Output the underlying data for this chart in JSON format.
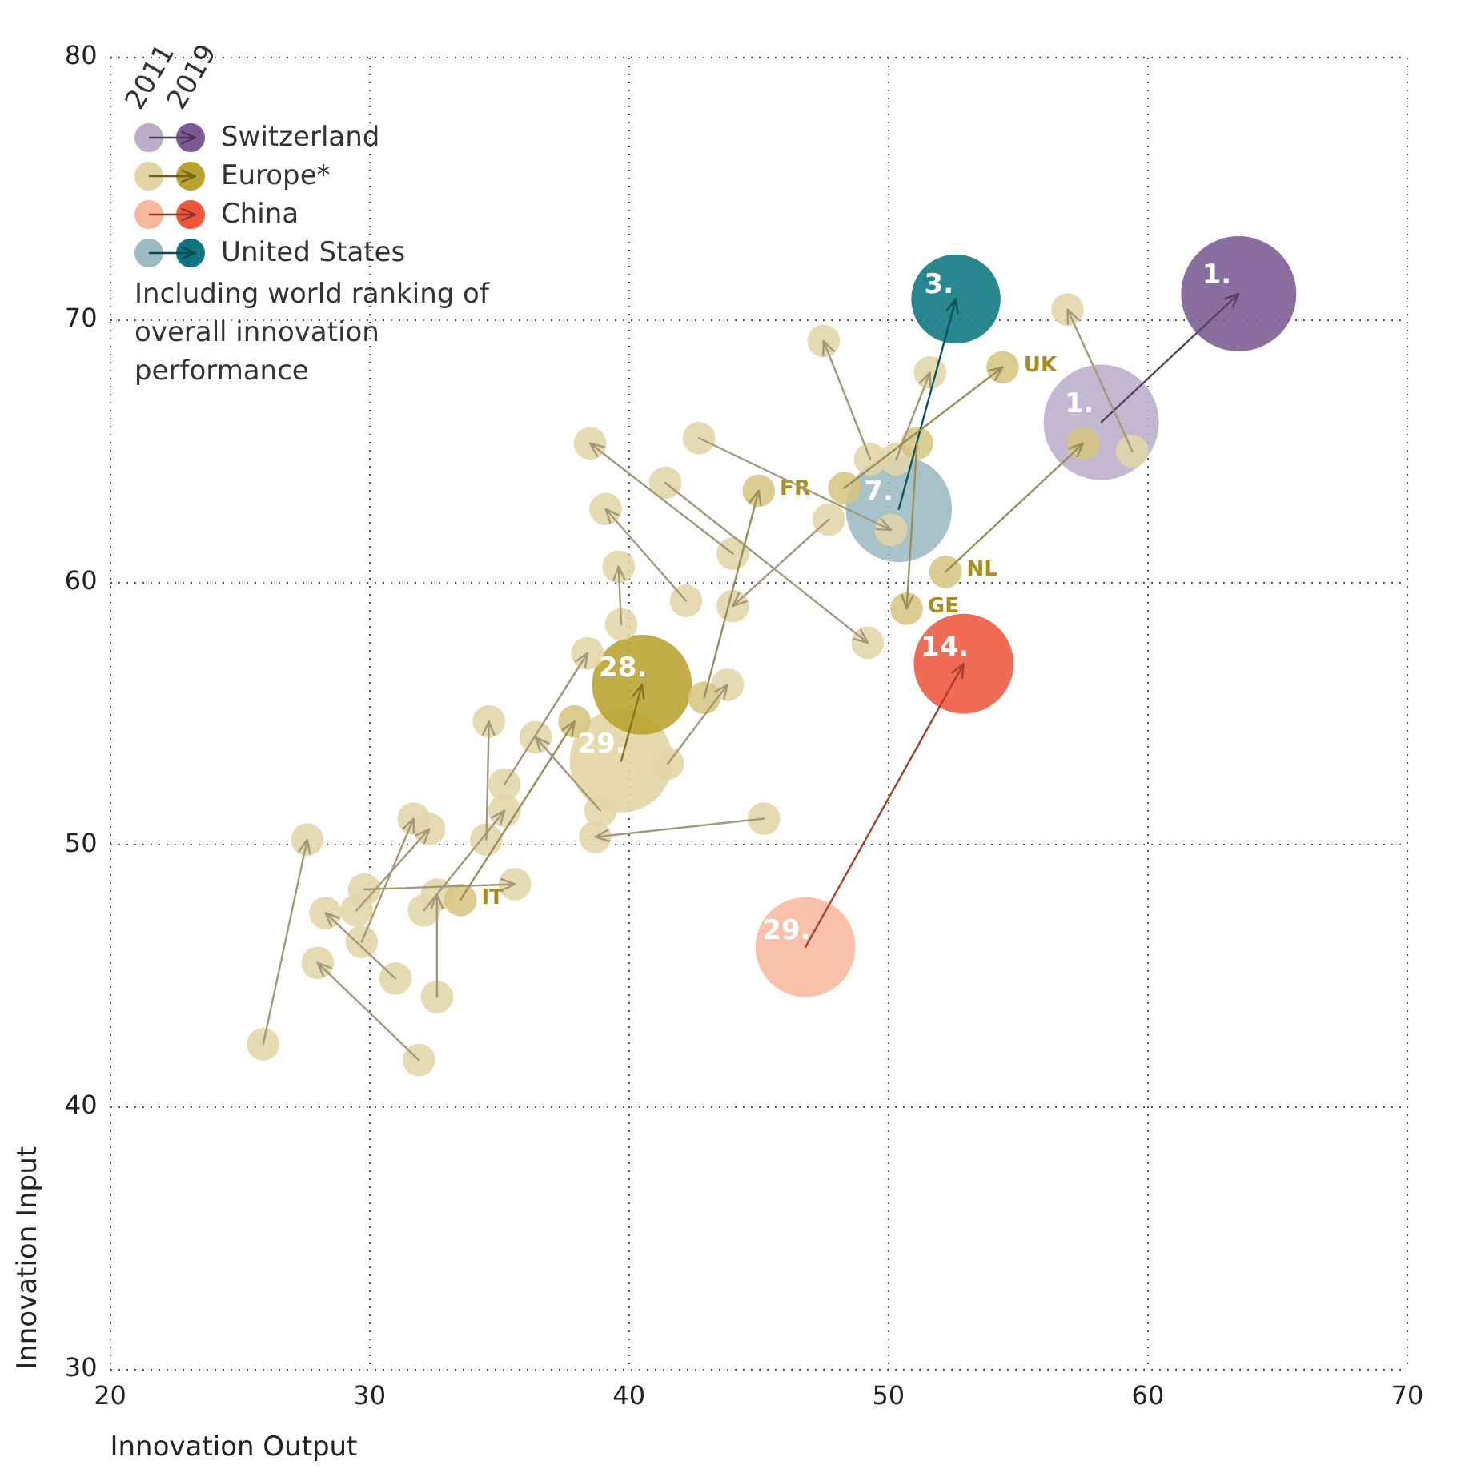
{
  "chart_data": {
    "type": "bubble",
    "xlabel": "Innovation Output",
    "ylabel": "Innovation Input",
    "xlim": [
      20,
      70
    ],
    "ylim": [
      30,
      80
    ],
    "xticks": [
      20,
      30,
      40,
      50,
      60,
      70
    ],
    "yticks": [
      30,
      40,
      50,
      60,
      70,
      80
    ],
    "grid": true,
    "legend": "top left",
    "annotations": [
      "2011",
      "2019",
      "Including world ranking of overall innovation performance",
      {
        "text": "1.",
        "x": 58.2,
        "y": 66.1
      },
      {
        "text": "1.",
        "x": 63.5,
        "y": 71.0
      },
      {
        "text": "29.",
        "x": 39.7,
        "y": 53.2
      },
      {
        "text": "28.",
        "x": 40.5,
        "y": 56.1
      },
      {
        "text": "29.",
        "x": 46.8,
        "y": 46.1
      },
      {
        "text": "14.",
        "x": 52.9,
        "y": 56.9
      },
      {
        "text": "7.",
        "x": 50.4,
        "y": 62.8
      },
      {
        "text": "3.",
        "x": 52.6,
        "y": 70.8
      },
      {
        "text": "IT",
        "x": 33.5,
        "y": 47.9
      },
      {
        "text": "FR",
        "x": 45.0,
        "y": 63.5
      },
      {
        "text": "UK",
        "x": 54.4,
        "y": 68.2
      },
      {
        "text": "NL",
        "x": 52.2,
        "y": 60.4
      },
      {
        "text": "GE",
        "x": 50.7,
        "y": 59.0
      }
    ],
    "series": [
      {
        "name": "Switzerland",
        "colors": [
          "#bcaec9",
          "#7a5a92"
        ],
        "x": [
          58.2,
          63.5
        ],
        "values": [
          66.1,
          71.0
        ],
        "sizes": [
          1,
          1
        ]
      },
      {
        "name": "Europe*",
        "colors": [
          "#e2d4a3",
          "#b9a22d"
        ],
        "x": [
          39.7,
          40.5
        ],
        "values": [
          53.2,
          56.1
        ],
        "sizes": [
          0.8,
          0.75
        ]
      },
      {
        "name": "China",
        "colors": [
          "#f8b89e",
          "#ef563c"
        ],
        "x": [
          46.8,
          52.9
        ],
        "values": [
          46.1,
          56.9
        ],
        "sizes": [
          0.75,
          0.75
        ]
      },
      {
        "name": "United States",
        "colors": [
          "#9bbac2",
          "#0b7681"
        ],
        "x": [
          50.4,
          52.6
        ],
        "values": [
          62.8,
          70.8
        ],
        "sizes": [
          0.85,
          0.6
        ]
      },
      {
        "colors": [
          "#e2d5a8",
          "#e2d5a8"
        ],
        "x": [
          25.9,
          27.6
        ],
        "values": [
          42.4,
          50.2
        ],
        "sizes": [
          0.08,
          0.08
        ]
      },
      {
        "colors": [
          "#e2d5a8",
          "#e2d5a8"
        ],
        "x": [
          31.9,
          28.0
        ],
        "values": [
          41.8,
          45.5
        ],
        "sizes": [
          0.08,
          0.08
        ]
      },
      {
        "colors": [
          "#e2d5a8",
          "#e2d5a8"
        ],
        "x": [
          32.6,
          32.6
        ],
        "values": [
          44.2,
          48.1
        ],
        "sizes": [
          0.08,
          0.08
        ]
      },
      {
        "colors": [
          "#e2d5a8",
          "#e2d5a8"
        ],
        "x": [
          31.0,
          28.3
        ],
        "values": [
          44.9,
          47.4
        ],
        "sizes": [
          0.08,
          0.08
        ]
      },
      {
        "colors": [
          "#e2d5a8",
          "#e2d5a8"
        ],
        "x": [
          29.7,
          31.7
        ],
        "values": [
          46.3,
          51.0
        ],
        "sizes": [
          0.08,
          0.08
        ]
      },
      {
        "colors": [
          "#e2d5a8",
          "#e2d5a8"
        ],
        "x": [
          29.8,
          35.6
        ],
        "values": [
          48.3,
          48.5
        ],
        "sizes": [
          0.08,
          0.08
        ]
      },
      {
        "colors": [
          "#e2d5a8",
          "#e2d5a8"
        ],
        "x": [
          29.5,
          32.3
        ],
        "values": [
          47.5,
          50.6
        ],
        "sizes": [
          0.08,
          0.08
        ]
      },
      {
        "colors": [
          "#e2d5a8",
          "#e2d5a8"
        ],
        "x": [
          32.1,
          35.2
        ],
        "values": [
          47.5,
          51.3
        ],
        "sizes": [
          0.08,
          0.08
        ]
      },
      {
        "colors": [
          "#e2d5a8",
          "#e2d5a8"
        ],
        "x": [
          34.5,
          34.6
        ],
        "values": [
          50.2,
          54.7
        ],
        "sizes": [
          0.08,
          0.08
        ]
      },
      {
        "colors": [
          "#e2d5a8",
          "#e2d5a8"
        ],
        "x": [
          35.2,
          38.4
        ],
        "values": [
          52.3,
          57.3
        ],
        "sizes": [
          0.08,
          0.08
        ]
      },
      {
        "colors": [
          "#e2d5a8",
          "#e2d5a8"
        ],
        "x": [
          38.9,
          36.4
        ],
        "values": [
          51.3,
          54.1
        ],
        "sizes": [
          0.08,
          0.08
        ]
      },
      {
        "colors": [
          "#e2d5a8",
          "#e2d5a8"
        ],
        "x": [
          44.0,
          38.5
        ],
        "values": [
          61.1,
          65.3
        ],
        "sizes": [
          0.08,
          0.08
        ]
      },
      {
        "colors": [
          "#e2d5a8",
          "#e2d5a8"
        ],
        "x": [
          41.4,
          49.2
        ],
        "values": [
          63.8,
          57.7
        ],
        "sizes": [
          0.08,
          0.08
        ]
      },
      {
        "colors": [
          "#e2d5a8",
          "#e2d5a8"
        ],
        "x": [
          42.7,
          50.1
        ],
        "values": [
          65.5,
          62.0
        ],
        "sizes": [
          0.08,
          0.08
        ]
      },
      {
        "colors": [
          "#e2d5a8",
          "#e2d5a8"
        ],
        "x": [
          42.2,
          39.1
        ],
        "values": [
          59.3,
          62.8
        ],
        "sizes": [
          0.08,
          0.08
        ]
      },
      {
        "colors": [
          "#e2d5a8",
          "#e2d5a8"
        ],
        "x": [
          39.7,
          39.6
        ],
        "values": [
          58.4,
          60.6
        ],
        "sizes": [
          0.08,
          0.08
        ]
      },
      {
        "colors": [
          "#e2d5a8",
          "#e2d5a8"
        ],
        "x": [
          47.7,
          44.0
        ],
        "values": [
          62.4,
          59.1
        ],
        "sizes": [
          0.08,
          0.08
        ]
      },
      {
        "colors": [
          "#e2d5a8",
          "#e2d5a8"
        ],
        "x": [
          41.5,
          43.8
        ],
        "values": [
          53.1,
          56.1
        ],
        "sizes": [
          0.08,
          0.08
        ]
      },
      {
        "colors": [
          "#e2d5a8",
          "#e2d5a8"
        ],
        "x": [
          45.2,
          38.7
        ],
        "values": [
          51.0,
          50.3
        ],
        "sizes": [
          0.08,
          0.08
        ]
      },
      {
        "colors": [
          "#e2d5a8",
          "#e2d5a8"
        ],
        "x": [
          49.3,
          47.5
        ],
        "values": [
          64.7,
          69.2
        ],
        "sizes": [
          0.08,
          0.08
        ]
      },
      {
        "colors": [
          "#e2d5a8",
          "#e2d5a8"
        ],
        "x": [
          50.3,
          51.6
        ],
        "values": [
          64.7,
          68.0
        ],
        "sizes": [
          0.08,
          0.08
        ]
      },
      {
        "colors": [
          "#e2d5a8",
          "#e2d5a8"
        ],
        "x": [
          59.4,
          56.9
        ],
        "values": [
          65.0,
          70.4
        ],
        "sizes": [
          0.08,
          0.08
        ]
      },
      {
        "colors": [
          "#d6c57f",
          "#d6c57f"
        ],
        "x": [
          33.5,
          37.9
        ],
        "values": [
          47.9,
          54.7
        ],
        "sizes": [
          0.08,
          0.08
        ]
      },
      {
        "colors": [
          "#d6c57f",
          "#d6c57f"
        ],
        "x": [
          42.9,
          45.0
        ],
        "values": [
          55.6,
          63.5
        ],
        "sizes": [
          0.08,
          0.08
        ]
      },
      {
        "colors": [
          "#d6c57f",
          "#d6c57f"
        ],
        "x": [
          48.3,
          54.4
        ],
        "values": [
          63.6,
          68.2
        ],
        "sizes": [
          0.08,
          0.08
        ]
      },
      {
        "colors": [
          "#d6c57f",
          "#d6c57f"
        ],
        "x": [
          52.2,
          57.5
        ],
        "values": [
          60.4,
          65.3
        ],
        "sizes": [
          0.08,
          0.08
        ]
      },
      {
        "colors": [
          "#d6c57f",
          "#d6c57f"
        ],
        "x": [
          51.1,
          50.7
        ],
        "values": [
          65.3,
          59.0
        ],
        "sizes": [
          0.08,
          0.08
        ]
      }
    ]
  }
}
